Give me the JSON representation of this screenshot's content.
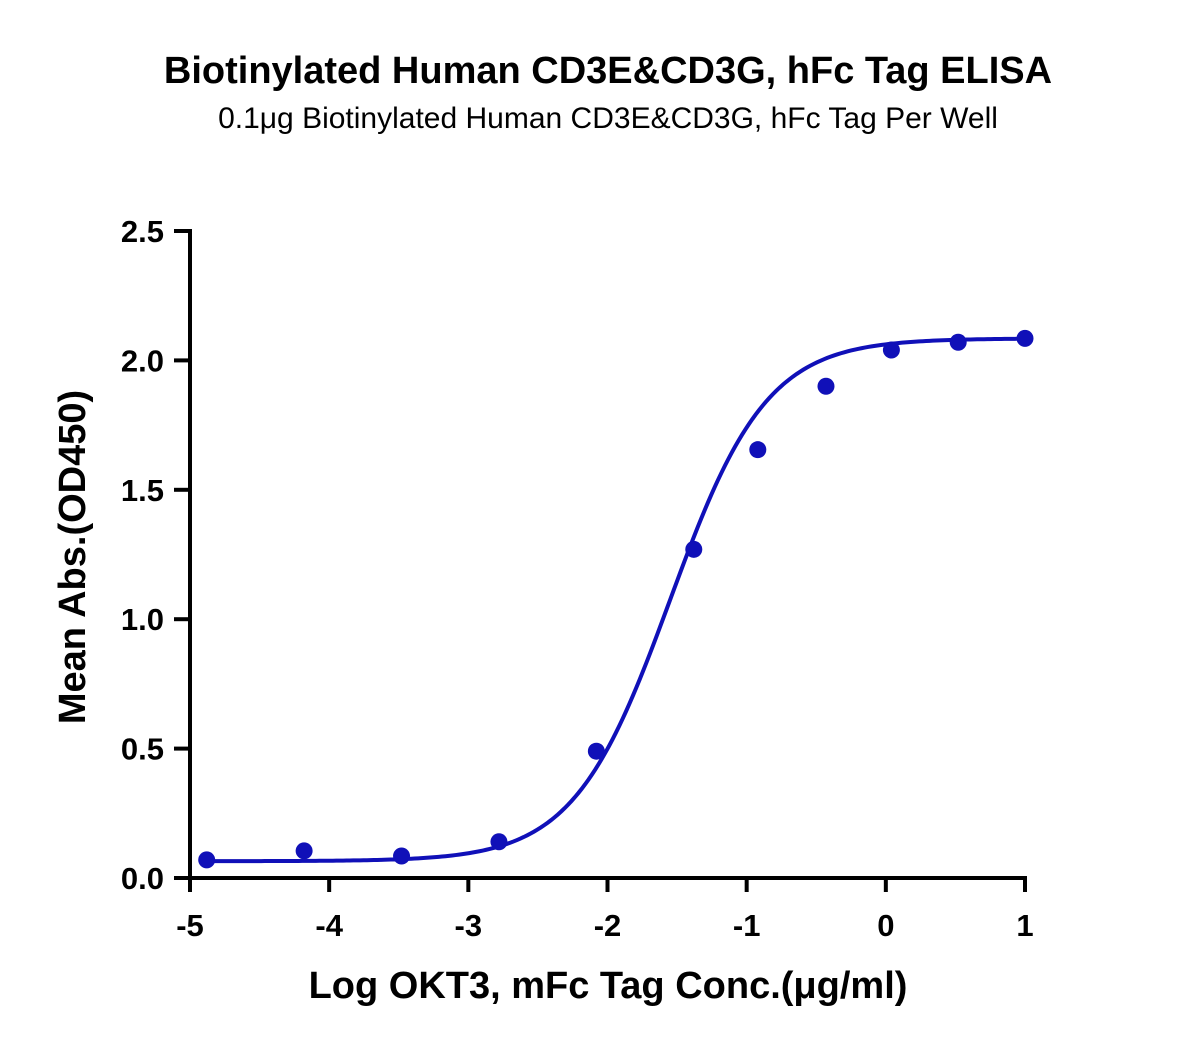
{
  "chart_data": {
    "type": "scatter",
    "title": "Biotinylated Human CD3E&CD3G, hFc Tag ELISA",
    "subtitle": "0.1μg Biotinylated Human CD3E&CD3G, hFc Tag Per Well",
    "xlabel": "Log OKT3, mFc Tag Conc.(μg/ml)",
    "ylabel": "Mean Abs.(OD450)",
    "xlim": [
      -5,
      1
    ],
    "ylim": [
      0,
      2.5
    ],
    "xticks": [
      -5,
      -4,
      -3,
      -2,
      -1,
      0,
      1
    ],
    "yticks": [
      0,
      0.5,
      1,
      1.5,
      2,
      2.5
    ],
    "xtick_labels": [
      "-5",
      "-4",
      "-3",
      "-2",
      "-1",
      "0",
      "1"
    ],
    "ytick_labels": [
      "0.0",
      "0.5",
      "1.0",
      "1.5",
      "2.0",
      "2.5"
    ],
    "grid": false,
    "color": "#1010b8",
    "series": [
      {
        "points": [
          {
            "x": -4.88,
            "y": 0.07
          },
          {
            "x": -4.18,
            "y": 0.105
          },
          {
            "x": -3.48,
            "y": 0.085
          },
          {
            "x": -2.78,
            "y": 0.14
          },
          {
            "x": -2.08,
            "y": 0.49
          },
          {
            "x": -1.38,
            "y": 1.27
          },
          {
            "x": -0.92,
            "y": 1.655
          },
          {
            "x": -0.43,
            "y": 1.9
          },
          {
            "x": 0.04,
            "y": 2.04
          },
          {
            "x": 0.52,
            "y": 2.07
          },
          {
            "x": 1.0,
            "y": 2.085
          }
        ],
        "fit": {
          "model": "4PL",
          "bottom": 0.065,
          "top": 2.085,
          "logEC50": -1.55,
          "hill": 1.25
        }
      }
    ]
  }
}
